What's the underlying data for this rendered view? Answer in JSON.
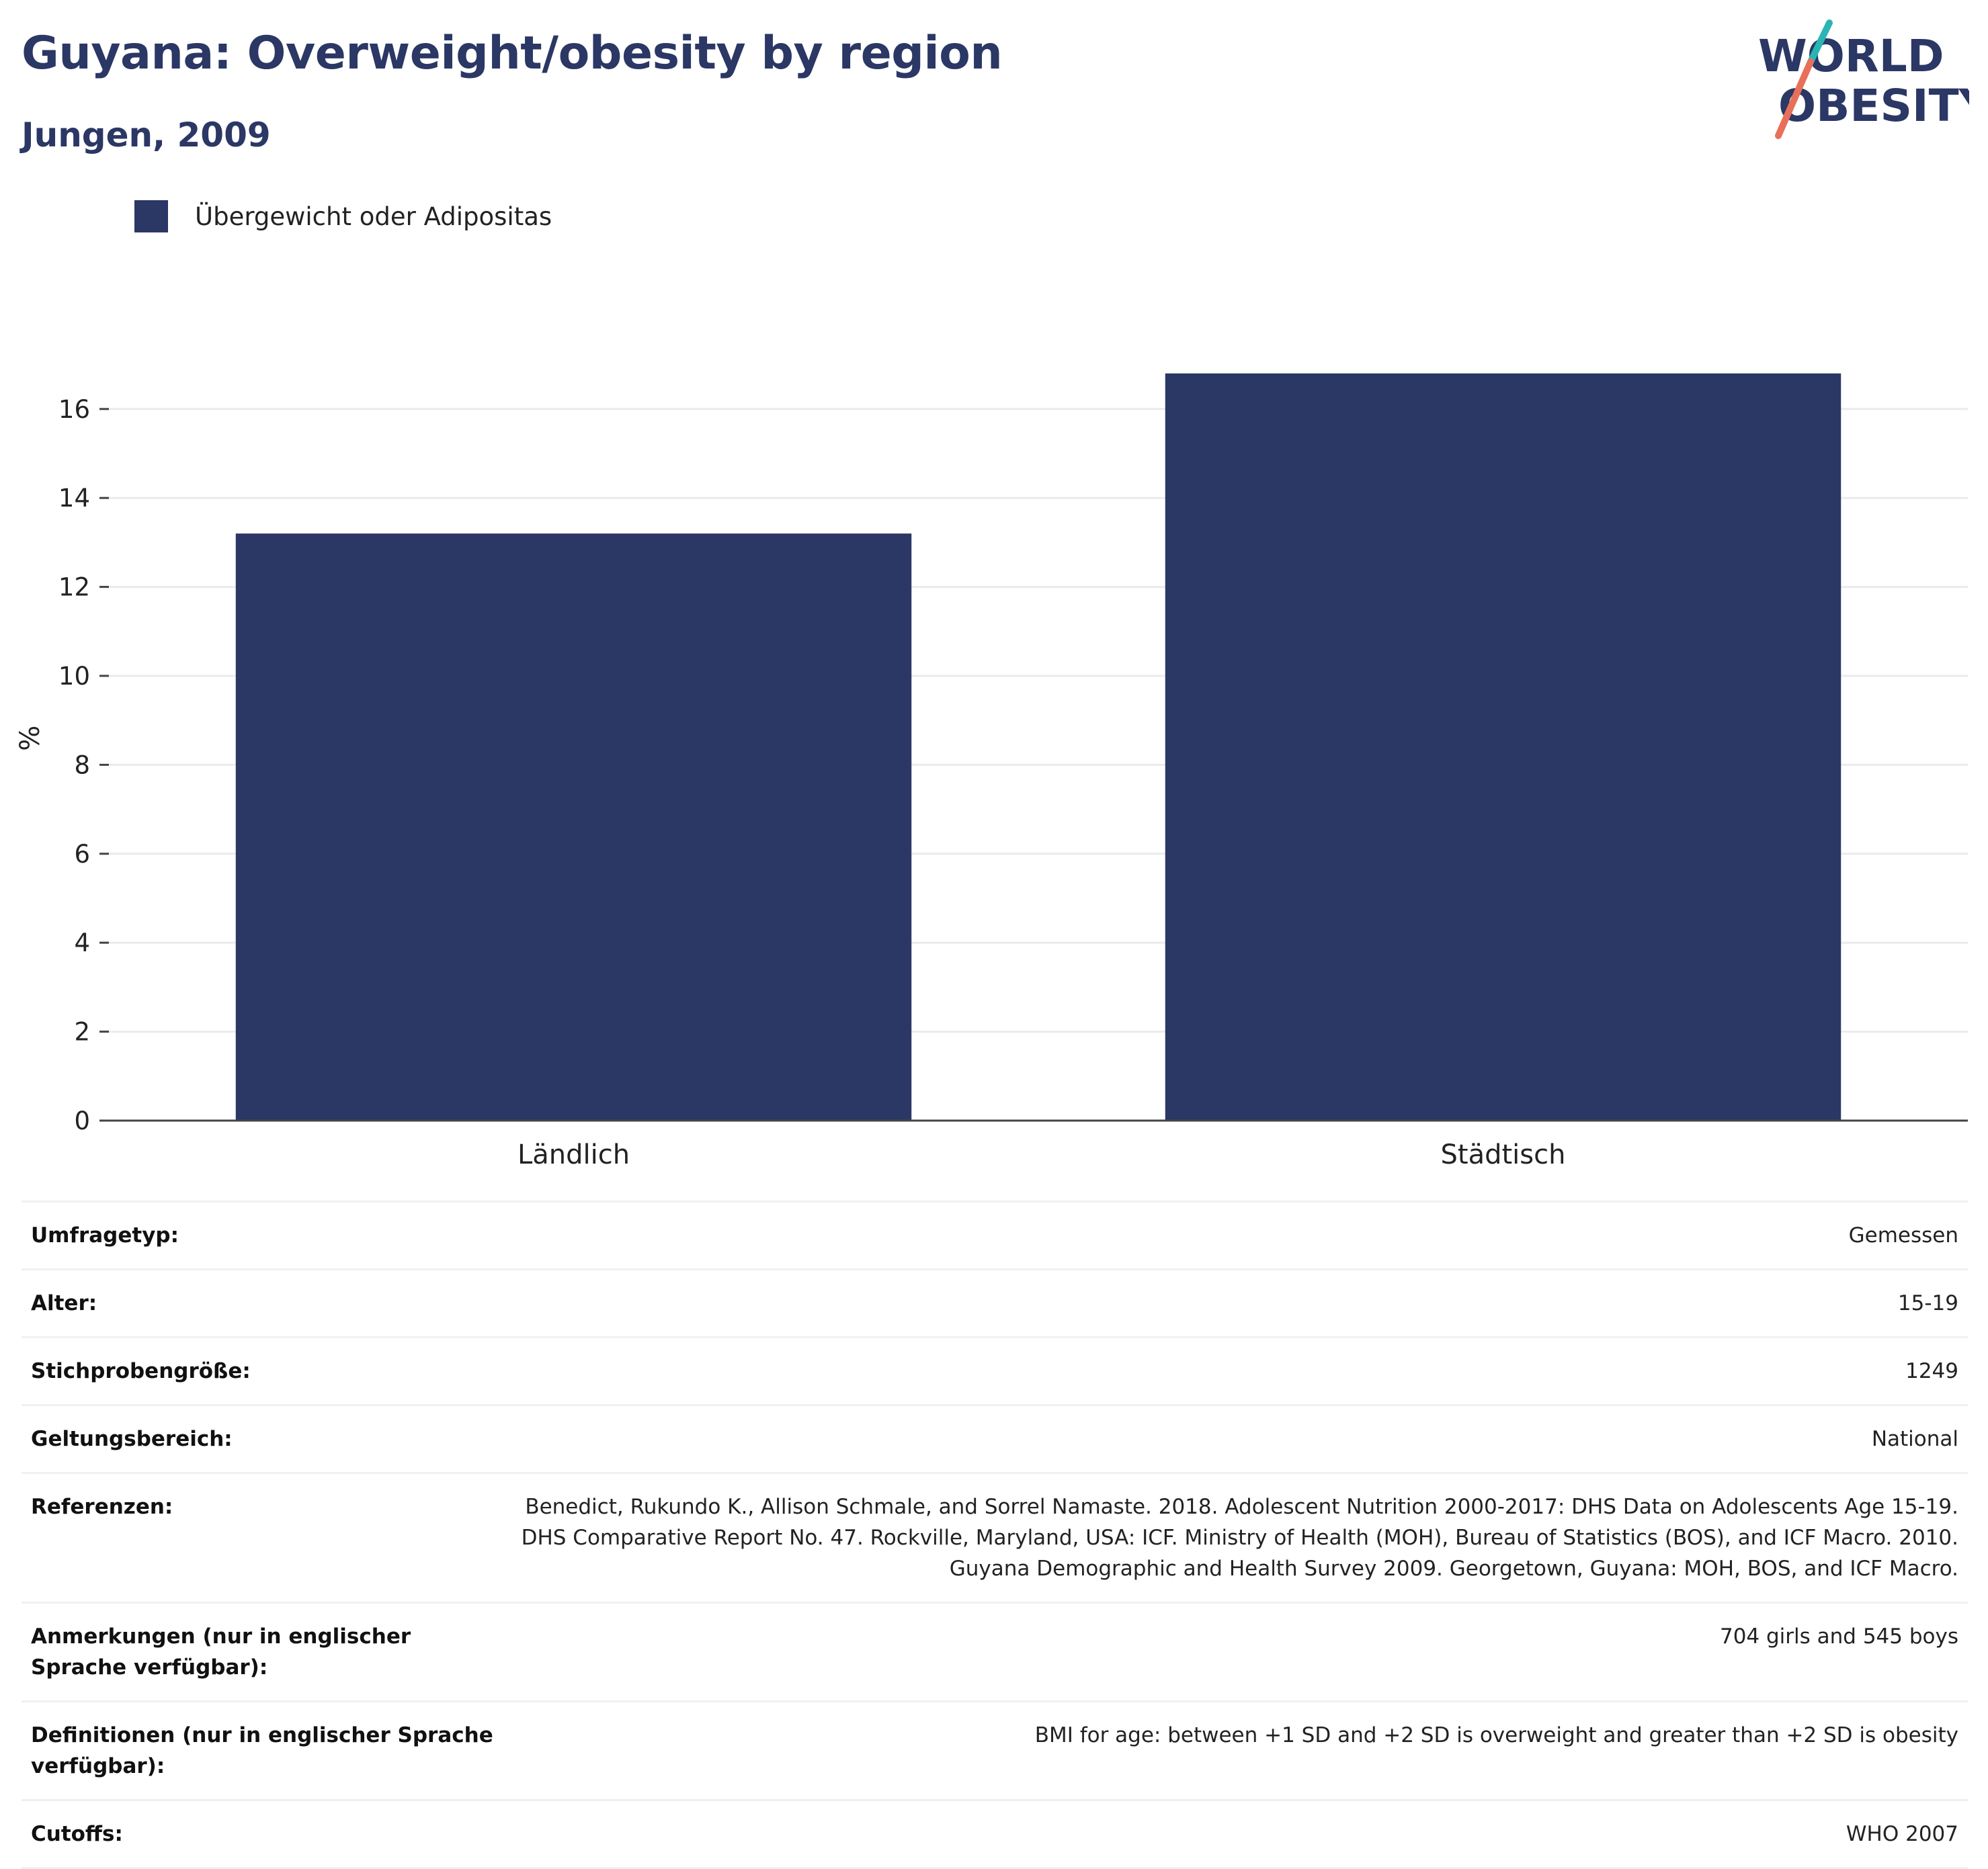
{
  "header": {
    "title": "Guyana: Overweight/obesity by region",
    "subtitle": "Jungen, 2009"
  },
  "logo": {
    "line1": "WORLD",
    "line2": "OBESITY",
    "slash_colors": [
      "#2ab5b5",
      "#e8705a"
    ],
    "text_color": "#2b3764"
  },
  "legend": {
    "label": "Übergewicht oder Adipositas",
    "color": "#2b3764"
  },
  "chart_data": {
    "type": "bar",
    "categories": [
      "Ländlich",
      "Städtisch"
    ],
    "series": [
      {
        "name": "Übergewicht oder Adipositas",
        "values": [
          13.2,
          16.8
        ],
        "color": "#2b3764"
      }
    ],
    "ylabel": "%",
    "xlabel": "",
    "ylim": [
      0,
      17.5
    ],
    "yticks": [
      0,
      2,
      4,
      6,
      8,
      10,
      12,
      14,
      16
    ],
    "grid": true,
    "legend_position": "top-left"
  },
  "info": [
    {
      "key": "Umfragetyp:",
      "value": "Gemessen"
    },
    {
      "key": "Alter:",
      "value": "15-19"
    },
    {
      "key": "Stichprobengröße:",
      "value": "1249"
    },
    {
      "key": "Geltungsbereich:",
      "value": "National"
    },
    {
      "key": "Referenzen:",
      "value": "Benedict, Rukundo K., Allison Schmale, and Sorrel Namaste. 2018. Adolescent Nutrition 2000-2017: DHS Data on Adolescents Age 15-19. DHS Comparative Report No. 47. Rockville, Maryland, USA: ICF. Ministry of Health (MOH), Bureau of Statistics (BOS), and ICF Macro. 2010. Guyana Demographic and Health Survey 2009. Georgetown, Guyana: MOH, BOS, and ICF Macro."
    },
    {
      "key": "Anmerkungen (nur in englischer Sprache verfügbar):",
      "value": "704 girls and 545 boys"
    },
    {
      "key": "Definitionen (nur in englischer Sprache verfügbar):",
      "value": "BMI for age: between +1 SD and +2 SD is overweight and greater than +2 SD is obesity"
    },
    {
      "key": "Cutoffs:",
      "value": "WHO 2007"
    }
  ]
}
